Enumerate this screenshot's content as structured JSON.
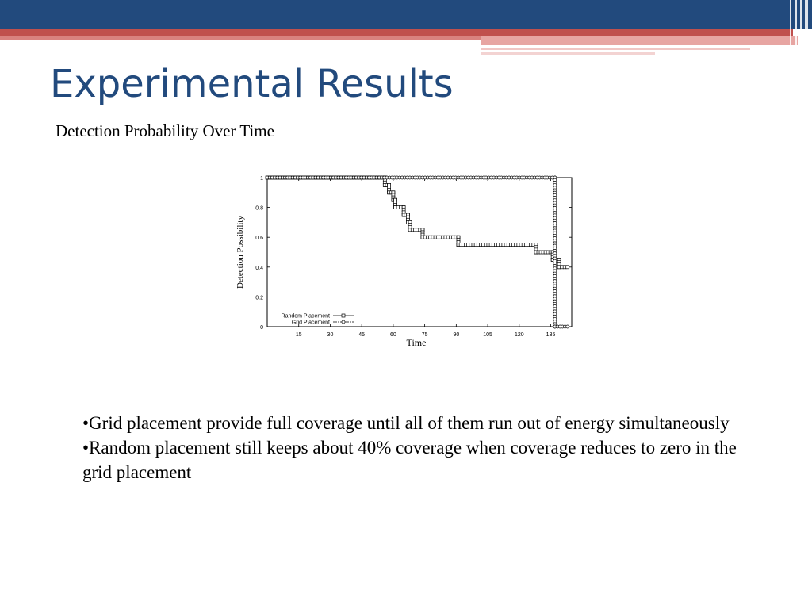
{
  "slide": {
    "title": "Experimental Results",
    "subtitle": "Detection Probability Over Time",
    "bullets": [
      "•Grid placement provide full coverage until all of them run out of energy simultaneously",
      "•Random placement still keeps about 40% coverage when coverage reduces to zero in the grid placement"
    ]
  },
  "theme": {
    "header_color": "#224a7d",
    "accent_red": "#c0504d",
    "title_color": "#224a7d"
  },
  "chart_data": {
    "type": "line",
    "xlabel": "Time",
    "ylabel": "Detection Possibility",
    "xlim": [
      0,
      145
    ],
    "ylim": [
      0,
      1
    ],
    "x_ticks": [
      15,
      30,
      45,
      60,
      75,
      90,
      105,
      120,
      135
    ],
    "y_ticks": [
      0,
      0.2,
      0.4,
      0.6,
      0.8,
      1
    ],
    "y_tick_labels": [
      "0",
      "0.2",
      "0.4",
      "0.6",
      "0.8",
      "1"
    ],
    "grid": false,
    "legend_position": "bottom-left",
    "series": [
      {
        "name": "Random Placement",
        "marker": "square",
        "points": [
          [
            0,
            1
          ],
          [
            56,
            1
          ],
          [
            56,
            0.95
          ],
          [
            58,
            0.95
          ],
          [
            58,
            0.9
          ],
          [
            60,
            0.9
          ],
          [
            60,
            0.85
          ],
          [
            61,
            0.85
          ],
          [
            61,
            0.8
          ],
          [
            65,
            0.8
          ],
          [
            65,
            0.75
          ],
          [
            67,
            0.75
          ],
          [
            67,
            0.7
          ],
          [
            68,
            0.7
          ],
          [
            68,
            0.65
          ],
          [
            74,
            0.65
          ],
          [
            74,
            0.6
          ],
          [
            91,
            0.6
          ],
          [
            91,
            0.55
          ],
          [
            128,
            0.55
          ],
          [
            128,
            0.5
          ],
          [
            136,
            0.5
          ],
          [
            136,
            0.45
          ],
          [
            139,
            0.45
          ],
          [
            139,
            0.4
          ],
          [
            143,
            0.4
          ]
        ]
      },
      {
        "name": "Grid Placement",
        "marker": "circle",
        "points": [
          [
            0,
            1
          ],
          [
            137,
            1
          ],
          [
            137,
            0
          ],
          [
            143,
            0
          ]
        ]
      }
    ]
  }
}
